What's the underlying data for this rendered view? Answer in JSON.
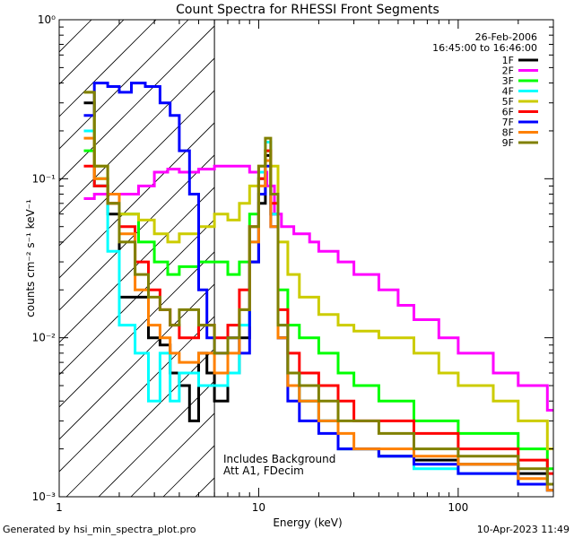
{
  "chart_data": {
    "type": "line",
    "title": "Count Spectra for RHESSI Front Segments",
    "xlabel": "Energy (keV)",
    "ylabel": "counts cm⁻² s⁻¹ keV⁻¹",
    "xscale": "log",
    "yscale": "log",
    "xlim": [
      1,
      300
    ],
    "ylim": [
      0.001,
      1
    ],
    "x_ticks": [
      {
        "value": 1,
        "label": "1"
      },
      {
        "value": 10,
        "label": "10"
      },
      {
        "value": 100,
        "label": "100"
      }
    ],
    "y_ticks": [
      {
        "value": 1,
        "label": "10⁰"
      },
      {
        "value": 0.1,
        "label": "10⁻¹"
      },
      {
        "value": 0.01,
        "label": "10⁻²"
      },
      {
        "value": 0.001,
        "label": "10⁻³"
      }
    ],
    "grid": false,
    "legend_position": "top-right",
    "date": "26-Feb-2006",
    "time_range": "16:45:00 to 16:46:00",
    "shaded_region": {
      "x_start": 1,
      "x_end": 6,
      "style": "diagonal-hatch"
    },
    "annotation_lines": [
      "Includes Background",
      "Att A1, FDecim"
    ],
    "footer_left": "Generated by hsi_min_spectra_plot.pro",
    "footer_right": "10-Apr-2023 11:49",
    "series": [
      {
        "name": "1F",
        "color": "#000000",
        "points": [
          [
            1.33,
            0.3
          ],
          [
            1.5,
            0.09
          ],
          [
            1.75,
            0.06
          ],
          [
            2.0,
            0.018
          ],
          [
            2.4,
            0.018
          ],
          [
            2.8,
            0.01
          ],
          [
            3.2,
            0.009
          ],
          [
            3.6,
            0.006
          ],
          [
            4.0,
            0.005
          ],
          [
            4.5,
            0.003
          ],
          [
            5.0,
            0.008
          ],
          [
            5.5,
            0.006
          ],
          [
            6.0,
            0.004
          ],
          [
            7.0,
            0.006
          ],
          [
            8.0,
            0.01
          ],
          [
            9.0,
            0.03
          ],
          [
            10.0,
            0.07
          ],
          [
            10.8,
            0.14
          ],
          [
            11.5,
            0.06
          ],
          [
            12.5,
            0.01
          ],
          [
            14.0,
            0.005
          ],
          [
            16.0,
            0.004
          ],
          [
            20.0,
            0.003
          ],
          [
            25.0,
            0.002
          ],
          [
            30.0,
            0.002
          ],
          [
            40.0,
            0.0018
          ],
          [
            60.0,
            0.0017
          ],
          [
            100.0,
            0.0016
          ],
          [
            200.0,
            0.0014
          ],
          [
            280.0,
            0.0012
          ]
        ]
      },
      {
        "name": "2F",
        "color": "#ff00ff",
        "points": [
          [
            1.33,
            0.075
          ],
          [
            1.5,
            0.08
          ],
          [
            1.75,
            0.08
          ],
          [
            2.0,
            0.08
          ],
          [
            2.5,
            0.09
          ],
          [
            3.0,
            0.11
          ],
          [
            3.5,
            0.115
          ],
          [
            4.0,
            0.11
          ],
          [
            5.0,
            0.115
          ],
          [
            6.0,
            0.12
          ],
          [
            7.0,
            0.12
          ],
          [
            8.0,
            0.12
          ],
          [
            9.0,
            0.11
          ],
          [
            10.0,
            0.11
          ],
          [
            11.0,
            0.09
          ],
          [
            12.0,
            0.06
          ],
          [
            13.0,
            0.05
          ],
          [
            15.0,
            0.045
          ],
          [
            18.0,
            0.04
          ],
          [
            20.0,
            0.035
          ],
          [
            25.0,
            0.03
          ],
          [
            30.0,
            0.025
          ],
          [
            40.0,
            0.02
          ],
          [
            50.0,
            0.016
          ],
          [
            60.0,
            0.013
          ],
          [
            80.0,
            0.01
          ],
          [
            100.0,
            0.008
          ],
          [
            150.0,
            0.006
          ],
          [
            200.0,
            0.005
          ],
          [
            280.0,
            0.0035
          ]
        ]
      },
      {
        "name": "3F",
        "color": "#00ff00",
        "points": [
          [
            1.33,
            0.15
          ],
          [
            1.5,
            0.1
          ],
          [
            1.75,
            0.08
          ],
          [
            2.0,
            0.06
          ],
          [
            2.5,
            0.04
          ],
          [
            3.0,
            0.03
          ],
          [
            3.5,
            0.025
          ],
          [
            4.0,
            0.028
          ],
          [
            5.0,
            0.03
          ],
          [
            6.0,
            0.03
          ],
          [
            7.0,
            0.025
          ],
          [
            8.0,
            0.03
          ],
          [
            9.0,
            0.06
          ],
          [
            10.0,
            0.1
          ],
          [
            10.8,
            0.15
          ],
          [
            11.5,
            0.08
          ],
          [
            12.5,
            0.02
          ],
          [
            14.0,
            0.012
          ],
          [
            16.0,
            0.01
          ],
          [
            20.0,
            0.008
          ],
          [
            25.0,
            0.006
          ],
          [
            30.0,
            0.005
          ],
          [
            40.0,
            0.004
          ],
          [
            60.0,
            0.003
          ],
          [
            100.0,
            0.0025
          ],
          [
            200.0,
            0.002
          ],
          [
            280.0,
            0.0015
          ]
        ]
      },
      {
        "name": "4F",
        "color": "#00ffff",
        "points": [
          [
            1.33,
            0.2
          ],
          [
            1.5,
            0.09
          ],
          [
            1.75,
            0.035
          ],
          [
            2.0,
            0.012
          ],
          [
            2.4,
            0.008
          ],
          [
            2.8,
            0.004
          ],
          [
            3.2,
            0.008
          ],
          [
            3.6,
            0.004
          ],
          [
            4.0,
            0.006
          ],
          [
            5.0,
            0.005
          ],
          [
            6.0,
            0.005
          ],
          [
            7.0,
            0.006
          ],
          [
            8.0,
            0.012
          ],
          [
            9.0,
            0.04
          ],
          [
            10.0,
            0.11
          ],
          [
            10.8,
            0.17
          ],
          [
            11.5,
            0.06
          ],
          [
            12.5,
            0.012
          ],
          [
            14.0,
            0.006
          ],
          [
            16.0,
            0.004
          ],
          [
            20.0,
            0.003
          ],
          [
            25.0,
            0.002
          ],
          [
            30.0,
            0.002
          ],
          [
            40.0,
            0.0018
          ],
          [
            60.0,
            0.0015
          ],
          [
            100.0,
            0.0014
          ],
          [
            200.0,
            0.0012
          ],
          [
            280.0,
            0.0011
          ]
        ]
      },
      {
        "name": "5F",
        "color": "#cccc00",
        "points": [
          [
            1.33,
            0.35
          ],
          [
            1.5,
            0.12
          ],
          [
            1.75,
            0.07
          ],
          [
            2.0,
            0.06
          ],
          [
            2.5,
            0.055
          ],
          [
            3.0,
            0.045
          ],
          [
            3.5,
            0.04
          ],
          [
            4.0,
            0.045
          ],
          [
            5.0,
            0.05
          ],
          [
            6.0,
            0.06
          ],
          [
            7.0,
            0.055
          ],
          [
            8.0,
            0.07
          ],
          [
            9.0,
            0.09
          ],
          [
            10.0,
            0.12
          ],
          [
            10.8,
            0.15
          ],
          [
            11.5,
            0.12
          ],
          [
            12.5,
            0.04
          ],
          [
            14.0,
            0.025
          ],
          [
            16.0,
            0.018
          ],
          [
            20.0,
            0.014
          ],
          [
            25.0,
            0.012
          ],
          [
            30.0,
            0.011
          ],
          [
            40.0,
            0.01
          ],
          [
            50.0,
            0.01
          ],
          [
            60.0,
            0.008
          ],
          [
            80.0,
            0.006
          ],
          [
            100.0,
            0.005
          ],
          [
            150.0,
            0.004
          ],
          [
            200.0,
            0.003
          ],
          [
            280.0,
            0.002
          ]
        ]
      },
      {
        "name": "6F",
        "color": "#ff0000",
        "points": [
          [
            1.33,
            0.12
          ],
          [
            1.5,
            0.09
          ],
          [
            1.75,
            0.07
          ],
          [
            2.0,
            0.05
          ],
          [
            2.4,
            0.03
          ],
          [
            2.8,
            0.02
          ],
          [
            3.2,
            0.015
          ],
          [
            3.6,
            0.012
          ],
          [
            4.0,
            0.01
          ],
          [
            5.0,
            0.012
          ],
          [
            6.0,
            0.01
          ],
          [
            7.0,
            0.012
          ],
          [
            8.0,
            0.02
          ],
          [
            9.0,
            0.05
          ],
          [
            10.0,
            0.1
          ],
          [
            10.8,
            0.15
          ],
          [
            11.5,
            0.07
          ],
          [
            12.5,
            0.015
          ],
          [
            14.0,
            0.008
          ],
          [
            16.0,
            0.006
          ],
          [
            20.0,
            0.005
          ],
          [
            25.0,
            0.004
          ],
          [
            30.0,
            0.003
          ],
          [
            40.0,
            0.003
          ],
          [
            60.0,
            0.0025
          ],
          [
            100.0,
            0.002
          ],
          [
            200.0,
            0.0017
          ],
          [
            280.0,
            0.0014
          ]
        ]
      },
      {
        "name": "7F",
        "color": "#0000ff",
        "points": [
          [
            1.33,
            0.25
          ],
          [
            1.5,
            0.4
          ],
          [
            1.75,
            0.38
          ],
          [
            2.0,
            0.35
          ],
          [
            2.3,
            0.4
          ],
          [
            2.7,
            0.38
          ],
          [
            3.2,
            0.3
          ],
          [
            3.6,
            0.25
          ],
          [
            4.0,
            0.15
          ],
          [
            4.5,
            0.08
          ],
          [
            5.0,
            0.02
          ],
          [
            5.5,
            0.01
          ],
          [
            6.0,
            0.008
          ],
          [
            7.0,
            0.01
          ],
          [
            8.0,
            0.008
          ],
          [
            9.0,
            0.03
          ],
          [
            10.0,
            0.08
          ],
          [
            10.8,
            0.12
          ],
          [
            11.5,
            0.05
          ],
          [
            12.5,
            0.01
          ],
          [
            14.0,
            0.004
          ],
          [
            16.0,
            0.003
          ],
          [
            20.0,
            0.0025
          ],
          [
            25.0,
            0.002
          ],
          [
            30.0,
            0.002
          ],
          [
            40.0,
            0.0018
          ],
          [
            60.0,
            0.0016
          ],
          [
            100.0,
            0.0014
          ],
          [
            200.0,
            0.0012
          ],
          [
            280.0,
            0.0011
          ]
        ]
      },
      {
        "name": "8F",
        "color": "#ff8000",
        "points": [
          [
            1.33,
            0.18
          ],
          [
            1.5,
            0.1
          ],
          [
            1.75,
            0.08
          ],
          [
            2.0,
            0.045
          ],
          [
            2.4,
            0.02
          ],
          [
            2.8,
            0.012
          ],
          [
            3.2,
            0.01
          ],
          [
            3.6,
            0.008
          ],
          [
            4.0,
            0.007
          ],
          [
            5.0,
            0.008
          ],
          [
            6.0,
            0.006
          ],
          [
            7.0,
            0.008
          ],
          [
            8.0,
            0.015
          ],
          [
            9.0,
            0.04
          ],
          [
            10.0,
            0.09
          ],
          [
            10.8,
            0.13
          ],
          [
            11.5,
            0.05
          ],
          [
            12.5,
            0.01
          ],
          [
            14.0,
            0.005
          ],
          [
            16.0,
            0.004
          ],
          [
            20.0,
            0.003
          ],
          [
            25.0,
            0.0025
          ],
          [
            30.0,
            0.002
          ],
          [
            40.0,
            0.002
          ],
          [
            60.0,
            0.0018
          ],
          [
            100.0,
            0.0016
          ],
          [
            200.0,
            0.0013
          ],
          [
            280.0,
            0.0011
          ]
        ]
      },
      {
        "name": "9F",
        "color": "#808000",
        "points": [
          [
            1.33,
            0.35
          ],
          [
            1.5,
            0.12
          ],
          [
            1.75,
            0.07
          ],
          [
            2.0,
            0.04
          ],
          [
            2.4,
            0.025
          ],
          [
            2.8,
            0.018
          ],
          [
            3.2,
            0.015
          ],
          [
            3.6,
            0.012
          ],
          [
            4.0,
            0.015
          ],
          [
            5.0,
            0.012
          ],
          [
            6.0,
            0.008
          ],
          [
            7.0,
            0.01
          ],
          [
            8.0,
            0.015
          ],
          [
            9.0,
            0.05
          ],
          [
            10.0,
            0.12
          ],
          [
            10.8,
            0.18
          ],
          [
            11.5,
            0.08
          ],
          [
            12.5,
            0.012
          ],
          [
            14.0,
            0.006
          ],
          [
            16.0,
            0.005
          ],
          [
            20.0,
            0.004
          ],
          [
            25.0,
            0.003
          ],
          [
            30.0,
            0.003
          ],
          [
            40.0,
            0.0025
          ],
          [
            60.0,
            0.002
          ],
          [
            100.0,
            0.0018
          ],
          [
            200.0,
            0.0015
          ],
          [
            280.0,
            0.0012
          ]
        ]
      }
    ]
  }
}
